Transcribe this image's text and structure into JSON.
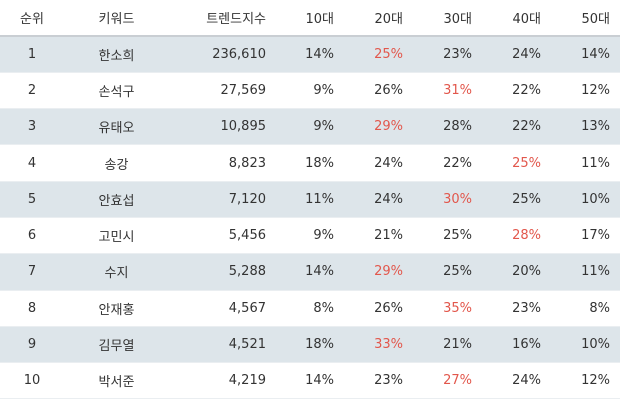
{
  "header": {
    "rank": "순위",
    "keyword": "키워드",
    "trend": "트렌드지수",
    "age10": "10대",
    "age20": "20대",
    "age30": "30대",
    "age40": "40대",
    "age50": "50대"
  },
  "highlight_color": "#e2574c",
  "rows": [
    {
      "rank": "1",
      "keyword": "한소희",
      "trend": "236,610",
      "age10": "14%",
      "age20": "25%",
      "age30": "23%",
      "age40": "24%",
      "age50": "14%",
      "highlight": "age20"
    },
    {
      "rank": "2",
      "keyword": "손석구",
      "trend": "27,569",
      "age10": "9%",
      "age20": "26%",
      "age30": "31%",
      "age40": "22%",
      "age50": "12%",
      "highlight": "age30"
    },
    {
      "rank": "3",
      "keyword": "유태오",
      "trend": "10,895",
      "age10": "9%",
      "age20": "29%",
      "age30": "28%",
      "age40": "22%",
      "age50": "13%",
      "highlight": "age20"
    },
    {
      "rank": "4",
      "keyword": "송강",
      "trend": "8,823",
      "age10": "18%",
      "age20": "24%",
      "age30": "22%",
      "age40": "25%",
      "age50": "11%",
      "highlight": "age40"
    },
    {
      "rank": "5",
      "keyword": "안효섭",
      "trend": "7,120",
      "age10": "11%",
      "age20": "24%",
      "age30": "30%",
      "age40": "25%",
      "age50": "10%",
      "highlight": "age30"
    },
    {
      "rank": "6",
      "keyword": "고민시",
      "trend": "5,456",
      "age10": "9%",
      "age20": "21%",
      "age30": "25%",
      "age40": "28%",
      "age50": "17%",
      "highlight": "age40"
    },
    {
      "rank": "7",
      "keyword": "수지",
      "trend": "5,288",
      "age10": "14%",
      "age20": "29%",
      "age30": "25%",
      "age40": "20%",
      "age50": "11%",
      "highlight": "age20"
    },
    {
      "rank": "8",
      "keyword": "안재홍",
      "trend": "4,567",
      "age10": "8%",
      "age20": "26%",
      "age30": "35%",
      "age40": "23%",
      "age50": "8%",
      "highlight": "age30"
    },
    {
      "rank": "9",
      "keyword": "김무열",
      "trend": "4,521",
      "age10": "18%",
      "age20": "33%",
      "age30": "21%",
      "age40": "16%",
      "age50": "10%",
      "highlight": "age20"
    },
    {
      "rank": "10",
      "keyword": "박서준",
      "trend": "4,219",
      "age10": "14%",
      "age20": "23%",
      "age30": "27%",
      "age40": "24%",
      "age50": "12%",
      "highlight": "age30"
    }
  ]
}
